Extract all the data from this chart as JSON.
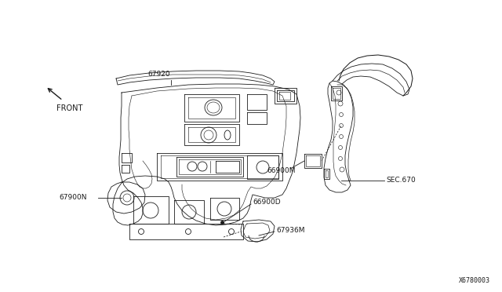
{
  "bg_color": "#ffffff",
  "line_color": "#1a1a1a",
  "label_color": "#1a1a1a",
  "diagram_id": "X6780003",
  "labels": {
    "front": "FRONT",
    "p67920": "67920",
    "p67900N": "67900N",
    "p66900M": "66900M",
    "p66900D": "66900D",
    "p67936M": "67936M",
    "sec670": "SEC.670"
  },
  "font_size": 6.5,
  "lw": 0.6
}
